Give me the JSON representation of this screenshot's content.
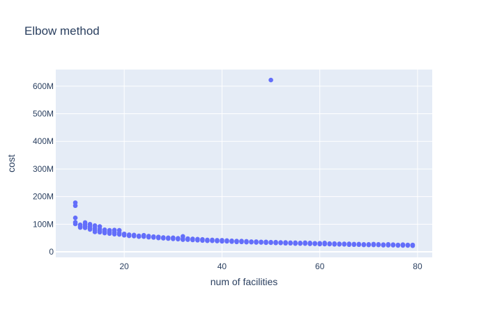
{
  "chart_data": {
    "type": "scatter",
    "title": "Elbow method",
    "xlabel": "num of facilities",
    "ylabel": "cost",
    "xlim": [
      6,
      83
    ],
    "ylim": [
      -20000000,
      660000000
    ],
    "x_ticks": [
      20,
      40,
      60,
      80
    ],
    "x_tick_labels": [
      "20",
      "40",
      "60",
      "80"
    ],
    "y_ticks": [
      0,
      100000000,
      200000000,
      300000000,
      400000000,
      500000000,
      600000000
    ],
    "y_tick_labels": [
      "0",
      "100M",
      "200M",
      "300M",
      "400M",
      "500M",
      "600M"
    ],
    "grid": true,
    "background": "#e5ecf6",
    "grid_color": "#ffffff",
    "marker_color": "#636efa",
    "points": [
      [
        10,
        178000000
      ],
      [
        10,
        167000000
      ],
      [
        10,
        123000000
      ],
      [
        10,
        107000000
      ],
      [
        10,
        101000000
      ],
      [
        11,
        98000000
      ],
      [
        11,
        92000000
      ],
      [
        11,
        88000000
      ],
      [
        12,
        106000000
      ],
      [
        12,
        99000000
      ],
      [
        12,
        92000000
      ],
      [
        12,
        87000000
      ],
      [
        13,
        100000000
      ],
      [
        13,
        92000000
      ],
      [
        13,
        85000000
      ],
      [
        13,
        81000000
      ],
      [
        14,
        95000000
      ],
      [
        14,
        86000000
      ],
      [
        14,
        78000000
      ],
      [
        14,
        72000000
      ],
      [
        15,
        92000000
      ],
      [
        15,
        82000000
      ],
      [
        15,
        76000000
      ],
      [
        15,
        71000000
      ],
      [
        16,
        80000000
      ],
      [
        16,
        73000000
      ],
      [
        16,
        68000000
      ],
      [
        17,
        78000000
      ],
      [
        17,
        72000000
      ],
      [
        17,
        66000000
      ],
      [
        18,
        79000000
      ],
      [
        18,
        71000000
      ],
      [
        18,
        64000000
      ],
      [
        19,
        78000000
      ],
      [
        19,
        68000000
      ],
      [
        19,
        63000000
      ],
      [
        20,
        65000000
      ],
      [
        20,
        60000000
      ],
      [
        21,
        62000000
      ],
      [
        21,
        58000000
      ],
      [
        22,
        61000000
      ],
      [
        22,
        57000000
      ],
      [
        23,
        58000000
      ],
      [
        23,
        55000000
      ],
      [
        24,
        60000000
      ],
      [
        24,
        55000000
      ],
      [
        25,
        57000000
      ],
      [
        25,
        53000000
      ],
      [
        26,
        55000000
      ],
      [
        26,
        52000000
      ],
      [
        27,
        54000000
      ],
      [
        27,
        50000000
      ],
      [
        28,
        52000000
      ],
      [
        28,
        49000000
      ],
      [
        29,
        51000000
      ],
      [
        29,
        48000000
      ],
      [
        30,
        51000000
      ],
      [
        30,
        47000000
      ],
      [
        31,
        49000000
      ],
      [
        31,
        46000000
      ],
      [
        32,
        56000000
      ],
      [
        32,
        47000000
      ],
      [
        32,
        44000000
      ],
      [
        33,
        48000000
      ],
      [
        33,
        44000000
      ],
      [
        34,
        47000000
      ],
      [
        34,
        43000000
      ],
      [
        35,
        46000000
      ],
      [
        35,
        42000000
      ],
      [
        36,
        45000000
      ],
      [
        36,
        41000000
      ],
      [
        37,
        43000000
      ],
      [
        37,
        40000000
      ],
      [
        38,
        43000000
      ],
      [
        38,
        40000000
      ],
      [
        39,
        42000000
      ],
      [
        39,
        39000000
      ],
      [
        40,
        42000000
      ],
      [
        40,
        38000000
      ],
      [
        41,
        41000000
      ],
      [
        41,
        38000000
      ],
      [
        42,
        40000000
      ],
      [
        42,
        37000000
      ],
      [
        43,
        39000000
      ],
      [
        43,
        36000000
      ],
      [
        44,
        39000000
      ],
      [
        44,
        36000000
      ],
      [
        45,
        38000000
      ],
      [
        45,
        35000000
      ],
      [
        46,
        37000000
      ],
      [
        46,
        35000000
      ],
      [
        47,
        37000000
      ],
      [
        47,
        34000000
      ],
      [
        48,
        36000000
      ],
      [
        48,
        34000000
      ],
      [
        49,
        36000000
      ],
      [
        49,
        33000000
      ],
      [
        50,
        622000000
      ],
      [
        50,
        35000000
      ],
      [
        50,
        33000000
      ],
      [
        51,
        35000000
      ],
      [
        51,
        32000000
      ],
      [
        52,
        34000000
      ],
      [
        52,
        32000000
      ],
      [
        53,
        34000000
      ],
      [
        53,
        31000000
      ],
      [
        54,
        33000000
      ],
      [
        54,
        31000000
      ],
      [
        55,
        33000000
      ],
      [
        55,
        30000000
      ],
      [
        56,
        32000000
      ],
      [
        56,
        30000000
      ],
      [
        57,
        33000000
      ],
      [
        57,
        30000000
      ],
      [
        58,
        32000000
      ],
      [
        58,
        29000000
      ],
      [
        59,
        31000000
      ],
      [
        59,
        29000000
      ],
      [
        60,
        31000000
      ],
      [
        60,
        28000000
      ],
      [
        61,
        32000000
      ],
      [
        61,
        28000000
      ],
      [
        62,
        30000000
      ],
      [
        62,
        28000000
      ],
      [
        63,
        30000000
      ],
      [
        63,
        27000000
      ],
      [
        64,
        29000000
      ],
      [
        64,
        27000000
      ],
      [
        65,
        29000000
      ],
      [
        65,
        27000000
      ],
      [
        66,
        29000000
      ],
      [
        66,
        26000000
      ],
      [
        67,
        28000000
      ],
      [
        67,
        26000000
      ],
      [
        68,
        28000000
      ],
      [
        68,
        26000000
      ],
      [
        69,
        27000000
      ],
      [
        69,
        25000000
      ],
      [
        70,
        27000000
      ],
      [
        70,
        25000000
      ],
      [
        71,
        28000000
      ],
      [
        71,
        25000000
      ],
      [
        72,
        27000000
      ],
      [
        72,
        25000000
      ],
      [
        73,
        26000000
      ],
      [
        73,
        24000000
      ],
      [
        74,
        27000000
      ],
      [
        74,
        24000000
      ],
      [
        75,
        26000000
      ],
      [
        75,
        24000000
      ],
      [
        76,
        25000000
      ],
      [
        76,
        23000000
      ],
      [
        77,
        26000000
      ],
      [
        77,
        23000000
      ],
      [
        78,
        25000000
      ],
      [
        78,
        23000000
      ],
      [
        79,
        25000000
      ],
      [
        79,
        22000000
      ]
    ]
  }
}
